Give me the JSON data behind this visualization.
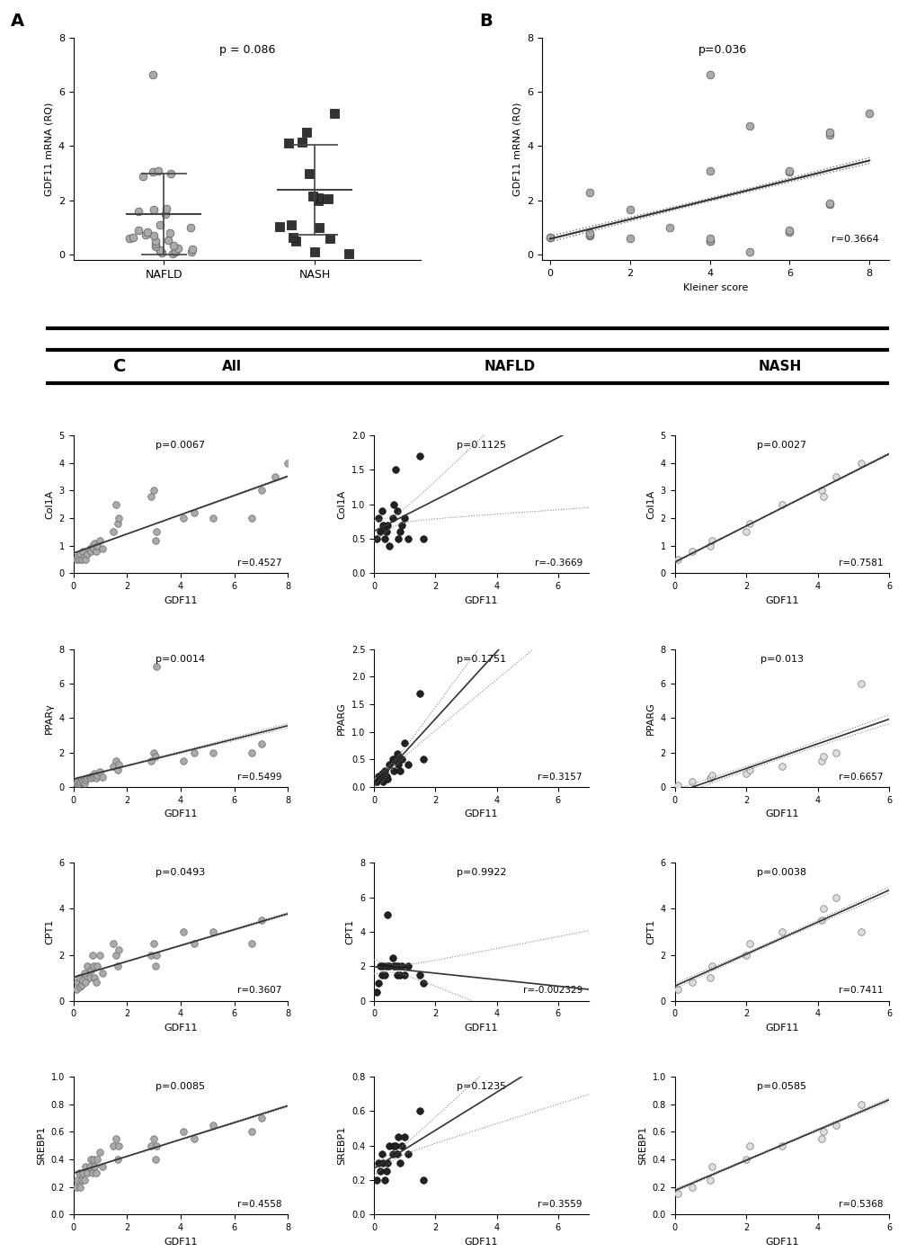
{
  "panel_A": {
    "nafld_data": [
      0.05,
      0.08,
      0.1,
      0.12,
      0.15,
      0.18,
      0.2,
      0.25,
      0.3,
      0.35,
      0.4,
      0.5,
      0.55,
      0.6,
      0.65,
      0.7,
      0.75,
      0.8,
      0.85,
      0.9,
      1.0,
      1.1,
      1.5,
      1.6,
      1.65,
      1.7,
      2.9,
      3.0,
      3.05,
      3.1,
      6.65
    ],
    "nash_data": [
      0.05,
      0.1,
      0.5,
      0.6,
      0.65,
      1.0,
      1.05,
      1.1,
      2.0,
      2.05,
      2.1,
      2.15,
      3.0,
      4.1,
      4.15,
      4.5,
      5.2
    ],
    "nafld_mean": 1.5,
    "nafld_sd": 1.5,
    "nash_mean": 2.4,
    "nash_sd": 1.65,
    "p_value": "p = 0.086",
    "ylabel": "GDF11 mRNA (RQ)",
    "ylim": [
      0,
      8
    ],
    "yticks": [
      0,
      2,
      4,
      6,
      8
    ]
  },
  "panel_B": {
    "x_data": [
      0,
      0,
      1,
      1,
      1,
      1,
      2,
      2,
      3,
      4,
      4,
      4,
      4,
      4,
      5,
      5,
      6,
      6,
      6,
      6,
      7,
      7,
      7,
      7,
      8
    ],
    "y_data": [
      0.65,
      0.65,
      0.7,
      0.75,
      0.8,
      2.3,
      1.65,
      0.6,
      1.0,
      0.5,
      0.5,
      0.6,
      3.1,
      6.65,
      0.1,
      4.75,
      0.85,
      0.9,
      3.05,
      3.1,
      1.85,
      1.9,
      4.4,
      4.5,
      5.2
    ],
    "r_value": "r=0.3664",
    "p_value": "p=0.036",
    "ylabel": "GDF11 mRNA (RQ)",
    "xlabel": "Kleiner score",
    "xlim": [
      0,
      8
    ],
    "ylim": [
      0,
      8
    ],
    "yticks": [
      0,
      2,
      4,
      6,
      8
    ],
    "xticks": [
      0,
      2,
      4,
      6,
      8
    ]
  },
  "panel_C": {
    "col1a1_all": {
      "x": [
        0.1,
        0.15,
        0.2,
        0.25,
        0.3,
        0.35,
        0.4,
        0.45,
        0.5,
        0.6,
        0.65,
        0.7,
        0.75,
        0.8,
        0.85,
        0.9,
        1.0,
        1.1,
        1.5,
        1.6,
        1.65,
        1.7,
        2.9,
        3.0,
        3.05,
        3.1,
        4.1,
        4.5,
        5.2,
        6.65,
        7.0,
        7.5,
        8.0
      ],
      "y": [
        0.5,
        0.6,
        0.5,
        0.7,
        0.5,
        0.8,
        0.6,
        0.5,
        0.7,
        0.9,
        0.8,
        1.0,
        0.9,
        1.1,
        0.8,
        1.0,
        1.2,
        0.9,
        1.5,
        2.5,
        1.8,
        2.0,
        2.8,
        3.0,
        1.2,
        1.5,
        2.0,
        2.2,
        2.0,
        2.0,
        3.0,
        3.5,
        4.0
      ],
      "r": "r=0.4527",
      "p": "p=0.0067",
      "ylabel": "Col1A",
      "xlabel": "GDF11",
      "xlim": [
        0,
        8
      ],
      "ylim": [
        0,
        5
      ],
      "yticks": [
        0,
        1,
        2,
        3,
        4,
        5
      ],
      "xticks": [
        0,
        2,
        4,
        6,
        8
      ]
    },
    "col1a1_nafld": {
      "x": [
        0.1,
        0.15,
        0.2,
        0.25,
        0.3,
        0.35,
        0.4,
        0.45,
        0.5,
        0.6,
        0.65,
        0.7,
        0.75,
        0.8,
        0.85,
        0.9,
        1.0,
        1.1,
        1.5,
        1.6
      ],
      "y": [
        0.5,
        0.8,
        0.6,
        0.9,
        0.7,
        0.5,
        0.6,
        0.7,
        0.4,
        0.8,
        1.0,
        1.5,
        0.9,
        0.5,
        0.6,
        0.7,
        0.8,
        0.5,
        1.7,
        0.5
      ],
      "r": "r=-0.3669",
      "p": "p=0.1125",
      "ylabel": "Col1A",
      "xlabel": "GDF11",
      "xlim": [
        0,
        7
      ],
      "ylim": [
        0,
        2.0
      ],
      "yticks": [
        0,
        0.5,
        1.0,
        1.5,
        2.0
      ],
      "xticks": [
        0,
        2,
        4,
        6
      ]
    },
    "col1a1_nash": {
      "x": [
        0.1,
        0.5,
        1.0,
        1.05,
        2.0,
        2.1,
        3.0,
        4.1,
        4.15,
        4.5,
        5.2
      ],
      "y": [
        0.5,
        0.8,
        1.0,
        1.2,
        1.5,
        1.8,
        2.5,
        3.0,
        2.8,
        3.5,
        4.0
      ],
      "r": "r=0.7581",
      "p": "p=0.0027",
      "ylabel": "Col1A",
      "xlabel": "GDF11",
      "xlim": [
        0,
        6
      ],
      "ylim": [
        0,
        5
      ],
      "yticks": [
        0,
        1,
        2,
        3,
        4,
        5
      ],
      "xticks": [
        0,
        2,
        4,
        6
      ]
    },
    "pparg_all": {
      "x": [
        0.1,
        0.15,
        0.2,
        0.25,
        0.3,
        0.35,
        0.4,
        0.45,
        0.5,
        0.6,
        0.65,
        0.7,
        0.75,
        0.8,
        0.85,
        0.9,
        1.0,
        1.1,
        1.5,
        1.6,
        1.65,
        1.7,
        2.9,
        3.0,
        3.05,
        3.1,
        4.1,
        4.5,
        5.2,
        6.65,
        7.0
      ],
      "y": [
        0.2,
        0.3,
        0.2,
        0.3,
        0.4,
        0.3,
        0.2,
        0.4,
        0.5,
        0.6,
        0.5,
        0.7,
        0.6,
        0.8,
        0.5,
        0.7,
        0.9,
        0.6,
        1.2,
        1.5,
        1.0,
        1.3,
        1.5,
        2.0,
        1.8,
        7.0,
        1.5,
        2.0,
        2.0,
        2.0,
        2.5
      ],
      "r": "r=0.5499",
      "p": "p=0.0014",
      "ylabel": "PPARγ",
      "xlabel": "GDF11",
      "xlim": [
        0,
        8
      ],
      "ylim": [
        0,
        8
      ],
      "yticks": [
        0,
        2,
        4,
        6,
        8
      ],
      "xticks": [
        0,
        2,
        4,
        6,
        8
      ]
    },
    "pparg_nafld": {
      "x": [
        0.1,
        0.15,
        0.2,
        0.25,
        0.3,
        0.35,
        0.4,
        0.45,
        0.5,
        0.6,
        0.65,
        0.7,
        0.75,
        0.8,
        0.85,
        0.9,
        1.0,
        1.1,
        1.5,
        1.6
      ],
      "y": [
        0.1,
        0.2,
        0.15,
        0.25,
        0.1,
        0.3,
        0.2,
        0.15,
        0.4,
        0.5,
        0.3,
        0.5,
        0.6,
        0.4,
        0.3,
        0.5,
        0.8,
        0.4,
        1.7,
        0.5
      ],
      "r": "r=0.3157",
      "p": "p=0.1751",
      "ylabel": "PPARG",
      "xlabel": "GDF11",
      "xlim": [
        0,
        7
      ],
      "ylim": [
        0,
        2.5
      ],
      "yticks": [
        0,
        0.5,
        1.0,
        1.5,
        2.0,
        2.5
      ],
      "xticks": [
        0,
        2,
        4,
        6
      ]
    },
    "pparg_nash": {
      "x": [
        0.1,
        0.5,
        1.0,
        1.05,
        2.0,
        2.1,
        3.0,
        4.1,
        4.15,
        4.5,
        5.2
      ],
      "y": [
        0.1,
        0.3,
        0.5,
        0.7,
        0.8,
        1.0,
        1.2,
        1.5,
        1.8,
        2.0,
        6.0
      ],
      "r": "r=0.6657",
      "p": "p=0.013",
      "ylabel": "PPARG",
      "xlabel": "GDF11",
      "xlim": [
        0,
        6
      ],
      "ylim": [
        0,
        8
      ],
      "yticks": [
        0,
        2,
        4,
        6,
        8
      ],
      "xticks": [
        0,
        2,
        4,
        6
      ]
    },
    "cpt1_all": {
      "x": [
        0.1,
        0.15,
        0.2,
        0.25,
        0.3,
        0.35,
        0.4,
        0.45,
        0.5,
        0.6,
        0.65,
        0.7,
        0.75,
        0.8,
        0.85,
        0.9,
        1.0,
        1.1,
        1.5,
        1.6,
        1.65,
        1.7,
        2.9,
        3.0,
        3.05,
        3.1,
        4.1,
        4.5,
        5.2,
        6.65,
        7.0
      ],
      "y": [
        0.5,
        0.8,
        1.0,
        0.6,
        0.7,
        0.9,
        1.2,
        0.8,
        1.5,
        1.0,
        1.3,
        2.0,
        1.5,
        1.0,
        0.8,
        1.5,
        2.0,
        1.2,
        2.5,
        2.0,
        1.5,
        2.2,
        2.0,
        2.5,
        1.5,
        2.0,
        3.0,
        2.5,
        3.0,
        2.5,
        3.5
      ],
      "r": "r=0.3607",
      "p": "p=0.0493",
      "ylabel": "CPT1",
      "xlabel": "GDF11",
      "xlim": [
        0,
        8
      ],
      "ylim": [
        0,
        6
      ],
      "yticks": [
        0,
        2,
        4,
        6
      ],
      "xticks": [
        0,
        2,
        4,
        6,
        8
      ]
    },
    "cpt1_nafld": {
      "x": [
        0.1,
        0.15,
        0.2,
        0.25,
        0.3,
        0.35,
        0.4,
        0.45,
        0.5,
        0.6,
        0.65,
        0.7,
        0.75,
        0.8,
        0.85,
        0.9,
        1.0,
        1.1,
        1.5,
        1.6
      ],
      "y": [
        0.5,
        1.0,
        2.0,
        1.5,
        2.0,
        1.5,
        2.0,
        5.0,
        2.0,
        2.5,
        2.0,
        2.0,
        1.5,
        2.0,
        1.5,
        2.0,
        1.5,
        2.0,
        1.5,
        1.0
      ],
      "r": "r=-0.002329",
      "p": "p=0.9922",
      "ylabel": "CPT1",
      "xlabel": "GDF11",
      "xlim": [
        0,
        7
      ],
      "ylim": [
        0,
        8
      ],
      "yticks": [
        0,
        2,
        4,
        6,
        8
      ],
      "xticks": [
        0,
        2,
        4,
        6
      ]
    },
    "cpt1_nash": {
      "x": [
        0.1,
        0.5,
        1.0,
        1.05,
        2.0,
        2.1,
        3.0,
        4.1,
        4.15,
        4.5,
        5.2
      ],
      "y": [
        0.5,
        0.8,
        1.0,
        1.5,
        2.0,
        2.5,
        3.0,
        3.5,
        4.0,
        4.5,
        3.0
      ],
      "r": "r=0.7411",
      "p": "p=0.0038",
      "ylabel": "CPT1",
      "xlabel": "GDF11",
      "xlim": [
        0,
        6
      ],
      "ylim": [
        0,
        6
      ],
      "yticks": [
        0,
        2,
        4,
        6
      ],
      "xticks": [
        0,
        2,
        4,
        6
      ]
    },
    "srebp1_all": {
      "x": [
        0.1,
        0.15,
        0.2,
        0.25,
        0.3,
        0.35,
        0.4,
        0.45,
        0.5,
        0.6,
        0.65,
        0.7,
        0.75,
        0.8,
        0.85,
        0.9,
        1.0,
        1.1,
        1.5,
        1.6,
        1.65,
        1.7,
        2.9,
        3.0,
        3.05,
        3.1,
        4.1,
        4.5,
        5.2,
        6.65,
        7.0
      ],
      "y": [
        0.2,
        0.25,
        0.3,
        0.2,
        0.25,
        0.3,
        0.25,
        0.35,
        0.3,
        0.35,
        0.4,
        0.3,
        0.4,
        0.35,
        0.3,
        0.4,
        0.45,
        0.35,
        0.5,
        0.55,
        0.4,
        0.5,
        0.5,
        0.55,
        0.4,
        0.5,
        0.6,
        0.55,
        0.65,
        0.6,
        0.7
      ],
      "r": "r=0.4558",
      "p": "p=0.0085",
      "ylabel": "SREBP1",
      "xlabel": "GDF11",
      "xlim": [
        0,
        8
      ],
      "ylim": [
        0,
        1.0
      ],
      "yticks": [
        0.0,
        0.2,
        0.4,
        0.6,
        0.8,
        1.0
      ],
      "xticks": [
        0,
        2,
        4,
        6,
        8
      ]
    },
    "srebp1_nafld": {
      "x": [
        0.1,
        0.15,
        0.2,
        0.25,
        0.3,
        0.35,
        0.4,
        0.45,
        0.5,
        0.6,
        0.65,
        0.7,
        0.75,
        0.8,
        0.85,
        0.9,
        1.0,
        1.1,
        1.5,
        1.6
      ],
      "y": [
        0.2,
        0.3,
        0.25,
        0.35,
        0.3,
        0.2,
        0.25,
        0.3,
        0.4,
        0.35,
        0.4,
        0.4,
        0.35,
        0.45,
        0.3,
        0.4,
        0.45,
        0.35,
        0.6,
        0.2
      ],
      "r": "r=0.3559",
      "p": "p=0.1235",
      "ylabel": "SREBP1",
      "xlabel": "GDF11",
      "xlim": [
        0,
        7
      ],
      "ylim": [
        0,
        0.8
      ],
      "yticks": [
        0.0,
        0.2,
        0.4,
        0.6,
        0.8
      ],
      "xticks": [
        0,
        2,
        4,
        6
      ]
    },
    "srebp1_nash": {
      "x": [
        0.1,
        0.5,
        1.0,
        1.05,
        2.0,
        2.1,
        3.0,
        4.1,
        4.15,
        4.5,
        5.2
      ],
      "y": [
        0.15,
        0.2,
        0.25,
        0.35,
        0.4,
        0.5,
        0.5,
        0.55,
        0.6,
        0.65,
        0.8
      ],
      "r": "r=0.5368",
      "p": "p=0.0585",
      "ylabel": "SREBP1",
      "xlabel": "GDF11",
      "xlim": [
        0,
        6
      ],
      "ylim": [
        0,
        1.0
      ],
      "yticks": [
        0.0,
        0.2,
        0.4,
        0.6,
        0.8,
        1.0
      ],
      "xticks": [
        0,
        2,
        4,
        6
      ]
    }
  },
  "colors": {
    "all_scatter": "#808080",
    "nafld_scatter": "#1a1a1a",
    "nash_scatter": "#d3d3d3",
    "line_color": "#404040",
    "dot_line": "#808080"
  }
}
